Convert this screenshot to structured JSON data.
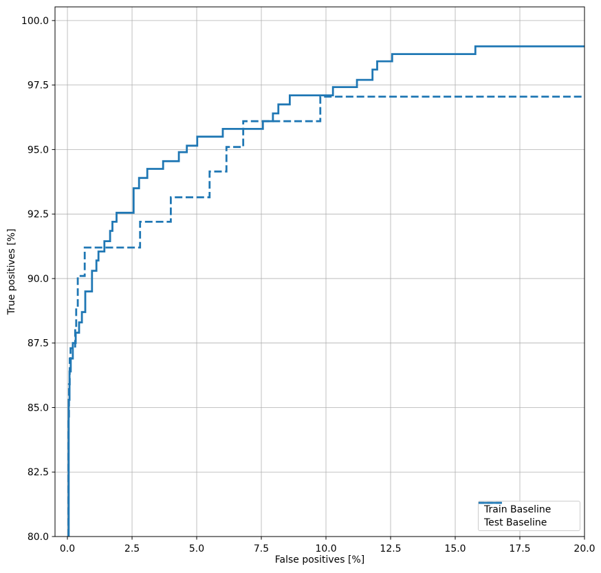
{
  "chart_data": {
    "type": "line",
    "subtype": "step-roc-curves",
    "title": "",
    "xlabel": "False positives [%]",
    "ylabel": "True positives [%]",
    "xlim": [
      -0.48,
      20.0
    ],
    "ylim": [
      80.0,
      100.53
    ],
    "grid": true,
    "grid_color": "#b0b0b0",
    "line_color": "#1f77b4",
    "legend_position": "lower right",
    "xticks": [
      0.0,
      2.5,
      5.0,
      7.5,
      10.0,
      12.5,
      15.0,
      17.5,
      20.0
    ],
    "xtick_labels": [
      "0.0",
      "2.5",
      "5.0",
      "7.5",
      "10.0",
      "12.5",
      "15.0",
      "17.5",
      "20.0"
    ],
    "yticks": [
      80.0,
      82.5,
      85.0,
      87.5,
      90.0,
      92.5,
      95.0,
      97.5,
      100.0
    ],
    "ytick_labels": [
      "80.0",
      "82.5",
      "85.0",
      "87.5",
      "90.0",
      "92.5",
      "95.0",
      "97.5",
      "100.0"
    ],
    "series": [
      {
        "name": "Train Baseline",
        "style": "solid",
        "start_y": 80.0,
        "x_end": 20.0,
        "step_points": [
          [
            0.05,
            85.3
          ],
          [
            0.08,
            86.4
          ],
          [
            0.13,
            86.9
          ],
          [
            0.21,
            87.5
          ],
          [
            0.32,
            87.9
          ],
          [
            0.45,
            88.3
          ],
          [
            0.56,
            88.7
          ],
          [
            0.69,
            89.5
          ],
          [
            0.95,
            90.3
          ],
          [
            1.12,
            90.7
          ],
          [
            1.2,
            91.05
          ],
          [
            1.43,
            91.45
          ],
          [
            1.65,
            91.85
          ],
          [
            1.74,
            92.2
          ],
          [
            1.9,
            92.55
          ],
          [
            2.56,
            93.5
          ],
          [
            2.77,
            93.9
          ],
          [
            3.09,
            94.25
          ],
          [
            3.7,
            94.55
          ],
          [
            4.31,
            94.9
          ],
          [
            4.62,
            95.15
          ],
          [
            5.02,
            95.5
          ],
          [
            6.01,
            95.8
          ],
          [
            7.56,
            96.1
          ],
          [
            7.95,
            96.4
          ],
          [
            8.16,
            96.75
          ],
          [
            8.6,
            97.1
          ],
          [
            10.27,
            97.42
          ],
          [
            11.2,
            97.7
          ],
          [
            11.8,
            98.1
          ],
          [
            11.98,
            98.42
          ],
          [
            12.56,
            98.7
          ],
          [
            15.78,
            99.0
          ]
        ]
      },
      {
        "name": "Test Baseline",
        "style": "dashed",
        "start_y": 80.0,
        "x_end": 20.0,
        "step_points": [
          [
            0.04,
            84.6
          ],
          [
            0.06,
            85.9
          ],
          [
            0.09,
            86.9
          ],
          [
            0.12,
            87.3
          ],
          [
            0.3,
            88.0
          ],
          [
            0.34,
            88.9
          ],
          [
            0.4,
            90.1
          ],
          [
            0.67,
            91.2
          ],
          [
            2.81,
            92.2
          ],
          [
            4.0,
            93.15
          ],
          [
            5.5,
            94.15
          ],
          [
            6.15,
            95.1
          ],
          [
            6.8,
            96.1
          ],
          [
            9.78,
            97.05
          ]
        ]
      }
    ]
  }
}
